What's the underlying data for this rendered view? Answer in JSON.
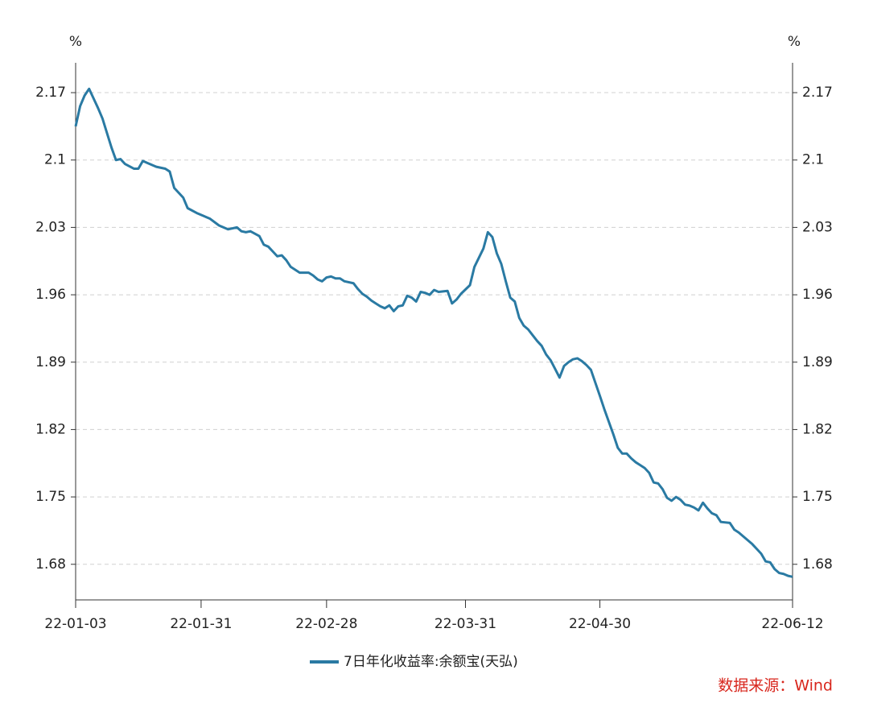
{
  "chart_data": {
    "type": "line",
    "y_unit": "%",
    "source": "数据来源：Wind",
    "x": [
      "22-01-03",
      "22-01-04",
      "22-01-05",
      "22-01-06",
      "22-01-07",
      "22-01-08",
      "22-01-09",
      "22-01-10",
      "22-01-11",
      "22-01-12",
      "22-01-13",
      "22-01-14",
      "22-01-16",
      "22-01-17",
      "22-01-18",
      "22-01-19",
      "22-01-20",
      "22-01-21",
      "22-01-23",
      "22-01-24",
      "22-01-25",
      "22-01-26",
      "22-01-27",
      "22-01-28",
      "22-01-30",
      "22-02-02",
      "22-02-04",
      "22-02-06",
      "22-02-08",
      "22-02-09",
      "22-02-10",
      "22-02-11",
      "22-02-13",
      "22-02-14",
      "22-02-15",
      "22-02-16",
      "22-02-17",
      "22-02-18",
      "22-02-19",
      "22-02-20",
      "22-02-21",
      "22-02-22",
      "22-02-24",
      "22-02-25",
      "22-02-26",
      "22-02-27",
      "22-02-28",
      "22-03-01",
      "22-03-02",
      "22-03-03",
      "22-03-04",
      "22-03-06",
      "22-03-07",
      "22-03-08",
      "22-03-09",
      "22-03-10",
      "22-03-11",
      "22-03-12",
      "22-03-13",
      "22-03-14",
      "22-03-15",
      "22-03-16",
      "22-03-17",
      "22-03-18",
      "22-03-19",
      "22-03-20",
      "22-03-21",
      "22-03-22",
      "22-03-23",
      "22-03-24",
      "22-03-25",
      "22-03-27",
      "22-03-28",
      "22-03-29",
      "22-03-30",
      "22-04-01",
      "22-04-02",
      "22-04-04",
      "22-04-05",
      "22-04-06",
      "22-04-07",
      "22-04-08",
      "22-04-09",
      "22-04-10",
      "22-04-11",
      "22-04-12",
      "22-04-13",
      "22-04-14",
      "22-04-15",
      "22-04-16",
      "22-04-17",
      "22-04-18",
      "22-04-19",
      "22-04-20",
      "22-04-21",
      "22-04-22",
      "22-04-23",
      "22-04-24",
      "22-04-25",
      "22-04-26",
      "22-04-27",
      "22-04-28",
      "22-04-30",
      "22-05-01",
      "22-05-02",
      "22-05-03",
      "22-05-04",
      "22-05-05",
      "22-05-06",
      "22-05-07",
      "22-05-08",
      "22-05-09",
      "22-05-10",
      "22-05-11",
      "22-05-12",
      "22-05-13",
      "22-05-14",
      "22-05-15",
      "22-05-16",
      "22-05-17",
      "22-05-18",
      "22-05-19",
      "22-05-20",
      "22-05-21",
      "22-05-22",
      "22-05-23",
      "22-05-24",
      "22-05-25",
      "22-05-26",
      "22-05-27",
      "22-05-29",
      "22-05-30",
      "22-05-31",
      "22-06-01",
      "22-06-02",
      "22-06-03",
      "22-06-04",
      "22-06-05",
      "22-06-06",
      "22-06-07",
      "22-06-08",
      "22-06-09",
      "22-06-10",
      "22-06-11",
      "22-06-12"
    ],
    "series": [
      {
        "name": "7日年化收益率:余额宝(天弘)",
        "color": "#2a7aa3",
        "values": [
          2.135,
          2.156,
          2.167,
          2.174,
          2.164,
          2.154,
          2.143,
          2.128,
          2.113,
          2.1,
          2.101,
          2.096,
          2.091,
          2.091,
          2.099,
          2.097,
          2.095,
          2.093,
          2.091,
          2.088,
          2.071,
          2.066,
          2.061,
          2.05,
          2.045,
          2.039,
          2.032,
          2.028,
          2.03,
          2.026,
          2.025,
          2.026,
          2.021,
          2.012,
          2.01,
          2.005,
          2.0,
          2.001,
          1.996,
          1.989,
          1.986,
          1.983,
          1.983,
          1.98,
          1.976,
          1.974,
          1.978,
          1.979,
          1.977,
          1.977,
          1.974,
          1.972,
          1.966,
          1.961,
          1.958,
          1.954,
          1.951,
          1.948,
          1.946,
          1.949,
          1.943,
          1.948,
          1.949,
          1.959,
          1.957,
          1.953,
          1.963,
          1.962,
          1.96,
          1.965,
          1.963,
          1.964,
          1.951,
          1.955,
          1.961,
          1.97,
          1.989,
          2.008,
          2.025,
          2.02,
          2.003,
          1.992,
          1.974,
          1.957,
          1.953,
          1.936,
          1.928,
          1.924,
          1.918,
          1.912,
          1.907,
          1.898,
          1.892,
          1.883,
          1.874,
          1.886,
          1.89,
          1.893,
          1.894,
          1.891,
          1.887,
          1.882,
          1.855,
          1.841,
          1.828,
          1.815,
          1.801,
          1.795,
          1.795,
          1.79,
          1.786,
          1.783,
          1.78,
          1.775,
          1.765,
          1.764,
          1.758,
          1.749,
          1.746,
          1.75,
          1.747,
          1.742,
          1.741,
          1.739,
          1.736,
          1.744,
          1.738,
          1.733,
          1.731,
          1.724,
          1.723,
          1.716,
          1.713,
          1.709,
          1.705,
          1.701,
          1.696,
          1.691,
          1.683,
          1.682,
          1.675,
          1.671,
          1.67,
          1.668,
          1.667
        ]
      }
    ],
    "xlim": [
      "22-01-03",
      "22-06-12"
    ],
    "xticks": [
      "22-01-03",
      "22-01-31",
      "22-02-28",
      "22-03-31",
      "22-04-30",
      "22-06-12"
    ],
    "ylim": [
      1.643,
      2.201
    ],
    "yticks": [
      1.68,
      1.75,
      1.82,
      1.89,
      1.96,
      2.03,
      2.1,
      2.17
    ],
    "grid": true
  }
}
